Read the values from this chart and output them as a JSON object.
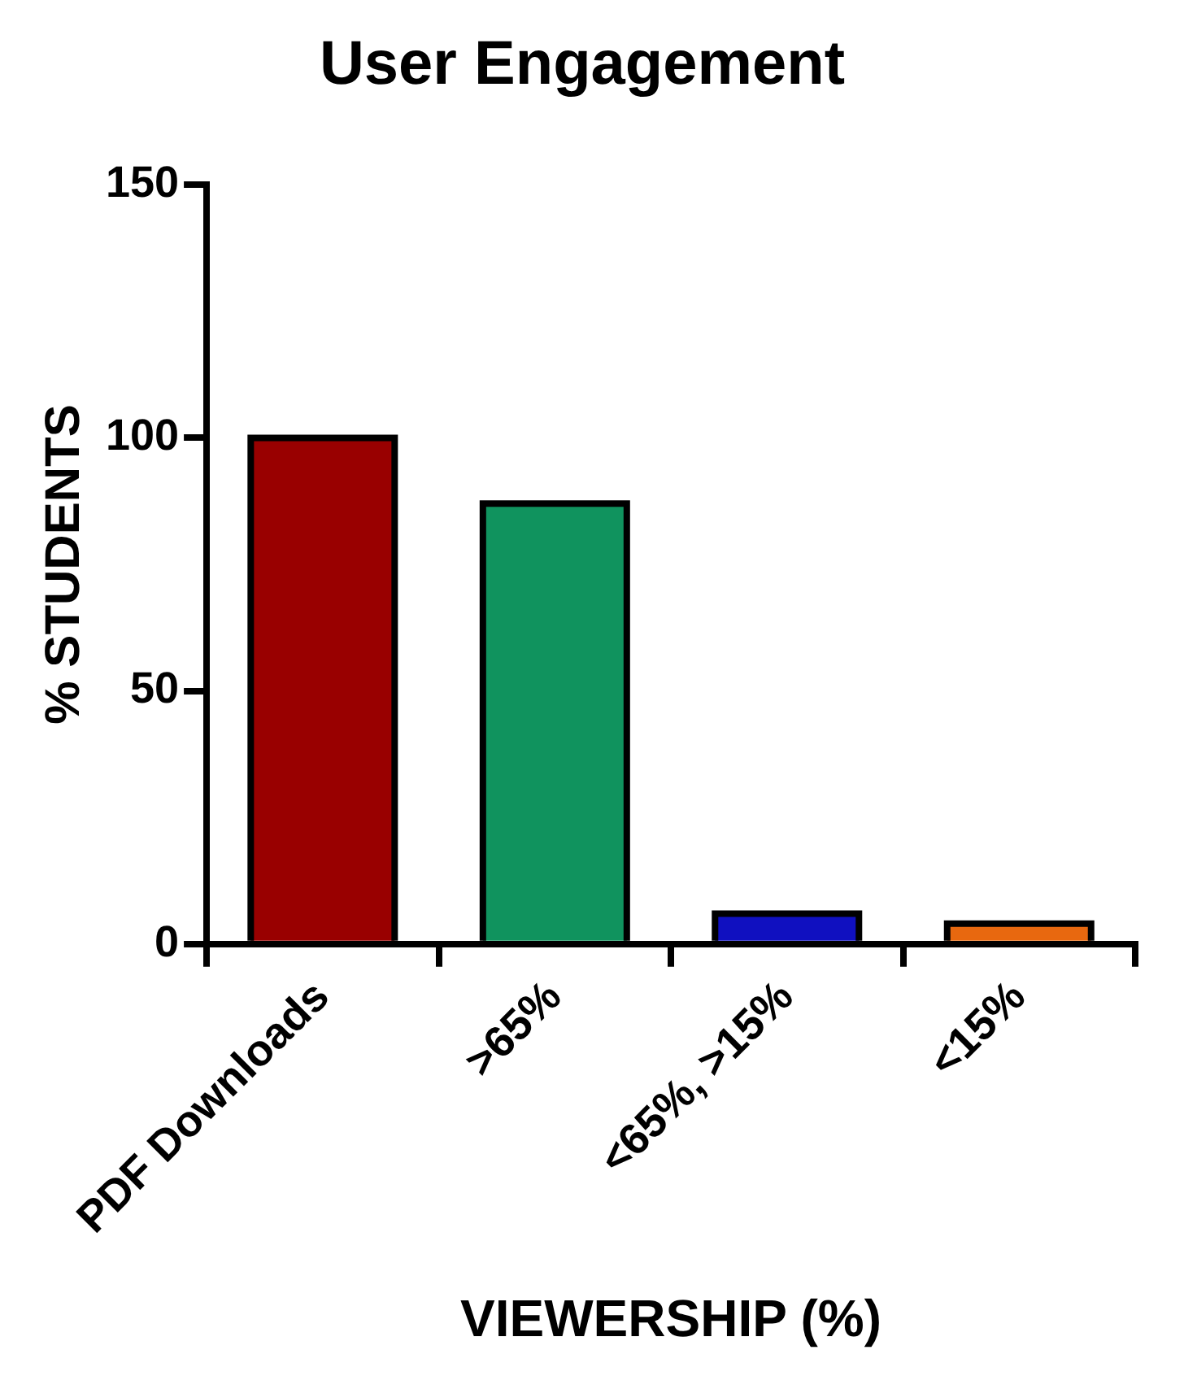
{
  "chart_data": {
    "type": "bar",
    "title": "User Engagement",
    "xlabel": "VIEWERSHIP (%)",
    "ylabel": "% STUDENTS",
    "categories": [
      "PDF Downloads",
      ">65%",
      "<65%, >15%",
      "<15%"
    ],
    "values": [
      100,
      87,
      6,
      4
    ],
    "colors": [
      "#990000",
      "#10935e",
      "#1010c0",
      "#e8680f"
    ],
    "ylim": [
      0,
      150
    ],
    "yticks": [
      0,
      50,
      100,
      150
    ],
    "grid": false,
    "legend": false
  }
}
